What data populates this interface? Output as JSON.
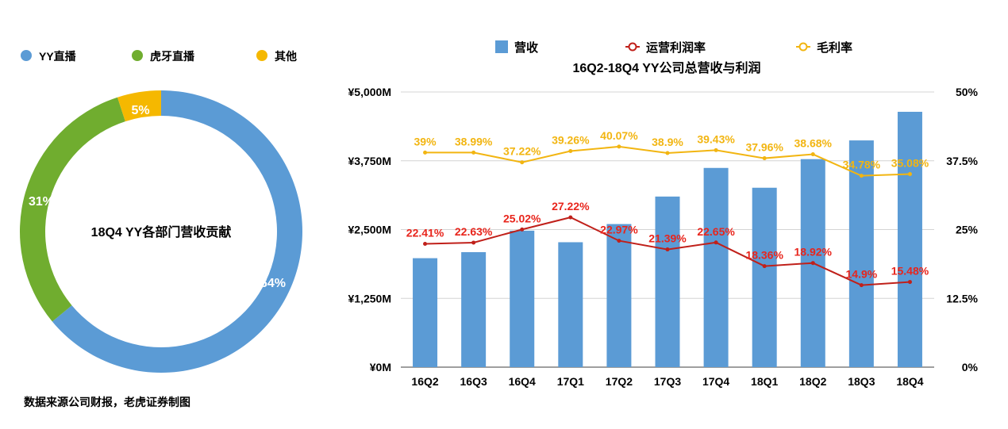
{
  "chart_data": [
    {
      "type": "pie",
      "variant": "donut",
      "title": "18Q4 YY各部门营收贡献",
      "legend_position": "top-left",
      "slices": [
        {
          "name": "YY直播",
          "value": 64,
          "label": "64%",
          "color": "#5b9bd5"
        },
        {
          "name": "虎牙直播",
          "value": 31,
          "label": "31%",
          "color": "#70ad2f"
        },
        {
          "name": "其他",
          "value": 5,
          "label": "5%",
          "color": "#f5b800"
        }
      ]
    },
    {
      "type": "bar",
      "title": "16Q2-18Q4 YY公司总营收与利润",
      "legend_position": "top",
      "categories": [
        "16Q2",
        "16Q3",
        "16Q4",
        "17Q1",
        "17Q2",
        "17Q3",
        "17Q4",
        "18Q1",
        "18Q2",
        "18Q3",
        "18Q4"
      ],
      "y_left": {
        "ylim": [
          0,
          5000
        ],
        "ticks": [
          0,
          1250,
          2500,
          3750,
          5000
        ],
        "tick_labels": [
          "¥0M",
          "¥1,250M",
          "¥2,500M",
          "¥3,750M",
          "¥5,000M"
        ]
      },
      "y_right": {
        "ylim": [
          0,
          50
        ],
        "ticks": [
          0,
          12.5,
          25,
          37.5,
          50
        ],
        "tick_labels": [
          "0%",
          "12.5%",
          "25%",
          "37.5%",
          "50%"
        ]
      },
      "series": [
        {
          "name": "营收",
          "kind": "bar",
          "axis": "left",
          "color": "#5b9bd5",
          "values": [
            1980,
            2090,
            2480,
            2270,
            2600,
            3100,
            3620,
            3260,
            3780,
            4120,
            4640
          ]
        },
        {
          "name": "运营利润率",
          "kind": "line",
          "axis": "right",
          "color": "#c0201a",
          "label_color": "#e8251c",
          "values": [
            22.41,
            22.63,
            25.02,
            27.22,
            22.97,
            21.39,
            22.65,
            18.36,
            18.92,
            14.9,
            15.48
          ],
          "labels": [
            "22.41%",
            "22.63%",
            "25.02%",
            "27.22%",
            "22.97%",
            "21.39%",
            "22.65%",
            "18.36%",
            "18.92%",
            "14.9%",
            "15.48%"
          ]
        },
        {
          "name": "毛利率",
          "kind": "line",
          "axis": "right",
          "color": "#f2b511",
          "label_color": "#f2b511",
          "values": [
            39,
            38.99,
            37.22,
            39.26,
            40.07,
            38.9,
            39.43,
            37.96,
            38.68,
            34.78,
            35.08
          ],
          "labels": [
            "39%",
            "38.99%",
            "37.22%",
            "39.26%",
            "40.07%",
            "38.9%",
            "39.43%",
            "37.96%",
            "38.68%",
            "34.78%",
            "35.08%"
          ]
        }
      ]
    }
  ],
  "source_note": "数据来源公司财报，老虎证券制图"
}
